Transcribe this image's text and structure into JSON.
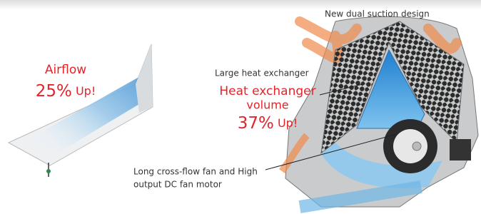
{
  "header": {
    "title": "New dual suction design"
  },
  "airflow": {
    "label": "Airflow",
    "figure": "25%",
    "suffix": "Up!"
  },
  "heat_exchanger": {
    "caption": "Large heat exchanger",
    "label_line1": "Heat exchanger",
    "label_line2": "volume",
    "figure": "37%",
    "suffix": "Up!"
  },
  "fan": {
    "line1": "Long cross-flow fan and High",
    "line2": "output DC fan motor"
  }
}
